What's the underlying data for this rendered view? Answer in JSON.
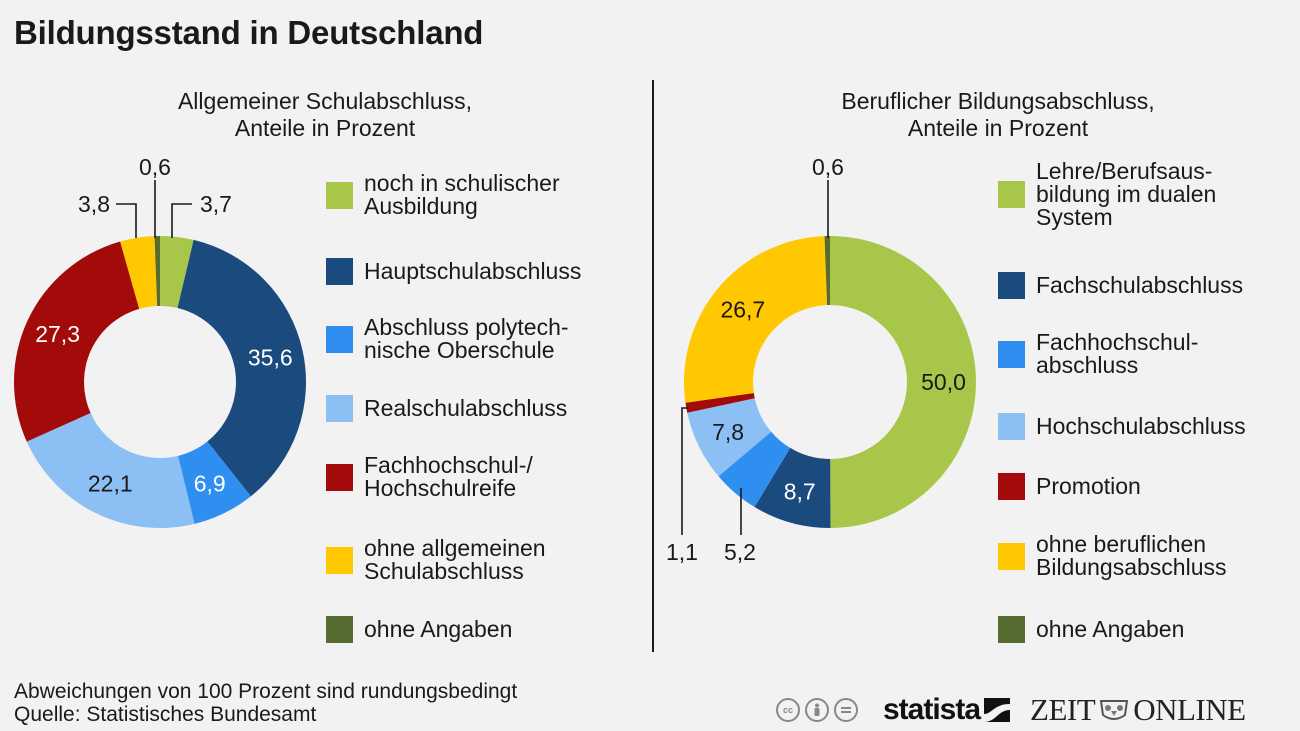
{
  "title": "Bildungsstand in Deutschland",
  "footer": {
    "note": "Abweichungen von 100 Prozent sind rundungsbedingt",
    "source": "Quelle: Statistisches Bundesamt"
  },
  "logos": {
    "cc_icons": [
      "cc-icon",
      "by-icon",
      "nd-icon"
    ],
    "statista": "statista",
    "zeit_left": "ZEIT",
    "zeit_right": "ONLINE"
  },
  "chart_data": [
    {
      "type": "pie",
      "variant": "donut",
      "title": "Allgemeiner Schulabschluss,",
      "subtitle": "Anteile in Prozent",
      "start": "top",
      "direction": "clockwise",
      "categories": [
        "noch in schulischer Ausbildung",
        "Hauptschulabschluss",
        "Abschluss polytechnische Oberschule",
        "Realschulabschluss",
        "Fachhochschul-/Hochschulreife",
        "ohne allgemeinen Schulabschluss",
        "ohne Angaben"
      ],
      "legend_lines": [
        [
          "noch in schulischer",
          "Ausbildung"
        ],
        [
          "Hauptschulabschluss"
        ],
        [
          "Abschluss polytech-",
          "nische Oberschule"
        ],
        [
          "Realschulabschluss"
        ],
        [
          "Fachhochschul-/",
          "Hochschulreife"
        ],
        [
          "ohne allgemeinen",
          "Schulabschluss"
        ],
        [
          "ohne Angaben"
        ]
      ],
      "values": [
        3.7,
        35.6,
        6.9,
        22.1,
        27.3,
        3.8,
        0.6
      ],
      "labels": [
        "3,7",
        "35,6",
        "6,9",
        "22,1",
        "27,3",
        "3,8",
        "0,6"
      ],
      "colors": [
        "#a8c64a",
        "#1b4a7e",
        "#2f8ff0",
        "#8cc0f5",
        "#a30a0a",
        "#ffc800",
        "#556b2f"
      ],
      "label_colors": [
        "#1a1a1a",
        "#ffffff",
        "#ffffff",
        "#1a1a1a",
        "#ffffff",
        "#1a1a1a",
        "#1a1a1a"
      ],
      "label_placement": [
        "outside",
        "inside",
        "inside",
        "inside",
        "inside",
        "outside",
        "outside"
      ],
      "legend": "right"
    },
    {
      "type": "pie",
      "variant": "donut",
      "title": "Beruflicher Bildungsabschluss,",
      "subtitle": "Anteile in Prozent",
      "start": "top",
      "direction": "clockwise",
      "categories": [
        "Lehre/Berufsausbildung im dualen System",
        "Fachschulabschluss",
        "Fachhochschulabschluss",
        "Hochschulabschluss",
        "Promotion",
        "ohne beruflichen Bildungsabschluss",
        "ohne Angaben"
      ],
      "legend_lines": [
        [
          "Lehre/Berufsaus-",
          "bildung im dualen",
          "System"
        ],
        [
          "Fachschulabschluss"
        ],
        [
          "Fachhochschul-",
          "abschluss"
        ],
        [
          "Hochschulabschluss"
        ],
        [
          "Promotion"
        ],
        [
          "ohne beruflichen",
          "Bildungsabschluss"
        ],
        [
          "ohne Angaben"
        ]
      ],
      "values": [
        50.0,
        8.7,
        5.2,
        7.8,
        1.1,
        26.7,
        0.6
      ],
      "labels": [
        "50,0",
        "8,7",
        "5,2",
        "7,8",
        "1,1",
        "26,7",
        "0,6"
      ],
      "colors": [
        "#a8c64a",
        "#1b4a7e",
        "#2f8ff0",
        "#8cc0f5",
        "#a30a0a",
        "#ffc800",
        "#556b2f"
      ],
      "label_colors": [
        "#1a1a1a",
        "#ffffff",
        "#1a1a1a",
        "#1a1a1a",
        "#1a1a1a",
        "#1a1a1a",
        "#1a1a1a"
      ],
      "label_placement": [
        "inside",
        "inside",
        "outside",
        "inside",
        "outside",
        "inside",
        "outside"
      ],
      "legend": "right"
    }
  ]
}
